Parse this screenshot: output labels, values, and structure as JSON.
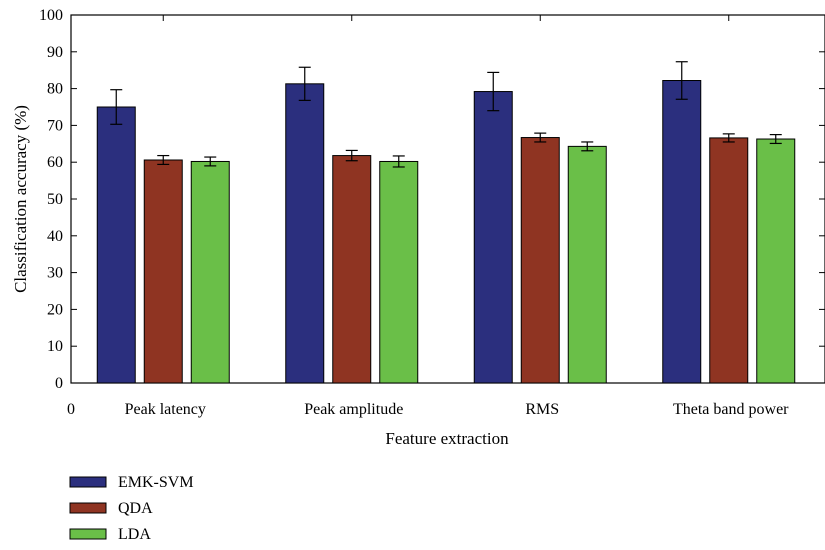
{
  "chart_data": {
    "type": "bar",
    "title": "",
    "xlabel": "Feature extraction",
    "ylabel": "Classification accuracy (%)",
    "ylim": [
      0,
      100
    ],
    "yticks": [
      0,
      10,
      20,
      30,
      40,
      50,
      60,
      70,
      80,
      90,
      100
    ],
    "x_origin_label": "0",
    "categories": [
      "Peak latency",
      "Peak amplitude",
      "RMS",
      "Theta band power"
    ],
    "series": [
      {
        "name": "EMK-SVM",
        "color": "#2b2f7e",
        "values": [
          75.0,
          81.3,
          79.2,
          82.2
        ],
        "errors": [
          4.7,
          4.5,
          5.2,
          5.1
        ]
      },
      {
        "name": "QDA",
        "color": "#8f3422",
        "values": [
          60.6,
          61.8,
          66.7,
          66.6
        ],
        "errors": [
          1.2,
          1.4,
          1.2,
          1.1
        ]
      },
      {
        "name": "LDA",
        "color": "#6abf48",
        "values": [
          60.2,
          60.2,
          64.3,
          66.3
        ],
        "errors": [
          1.2,
          1.5,
          1.2,
          1.2
        ]
      }
    ],
    "grid": false,
    "legend_position": "bottom-left"
  }
}
